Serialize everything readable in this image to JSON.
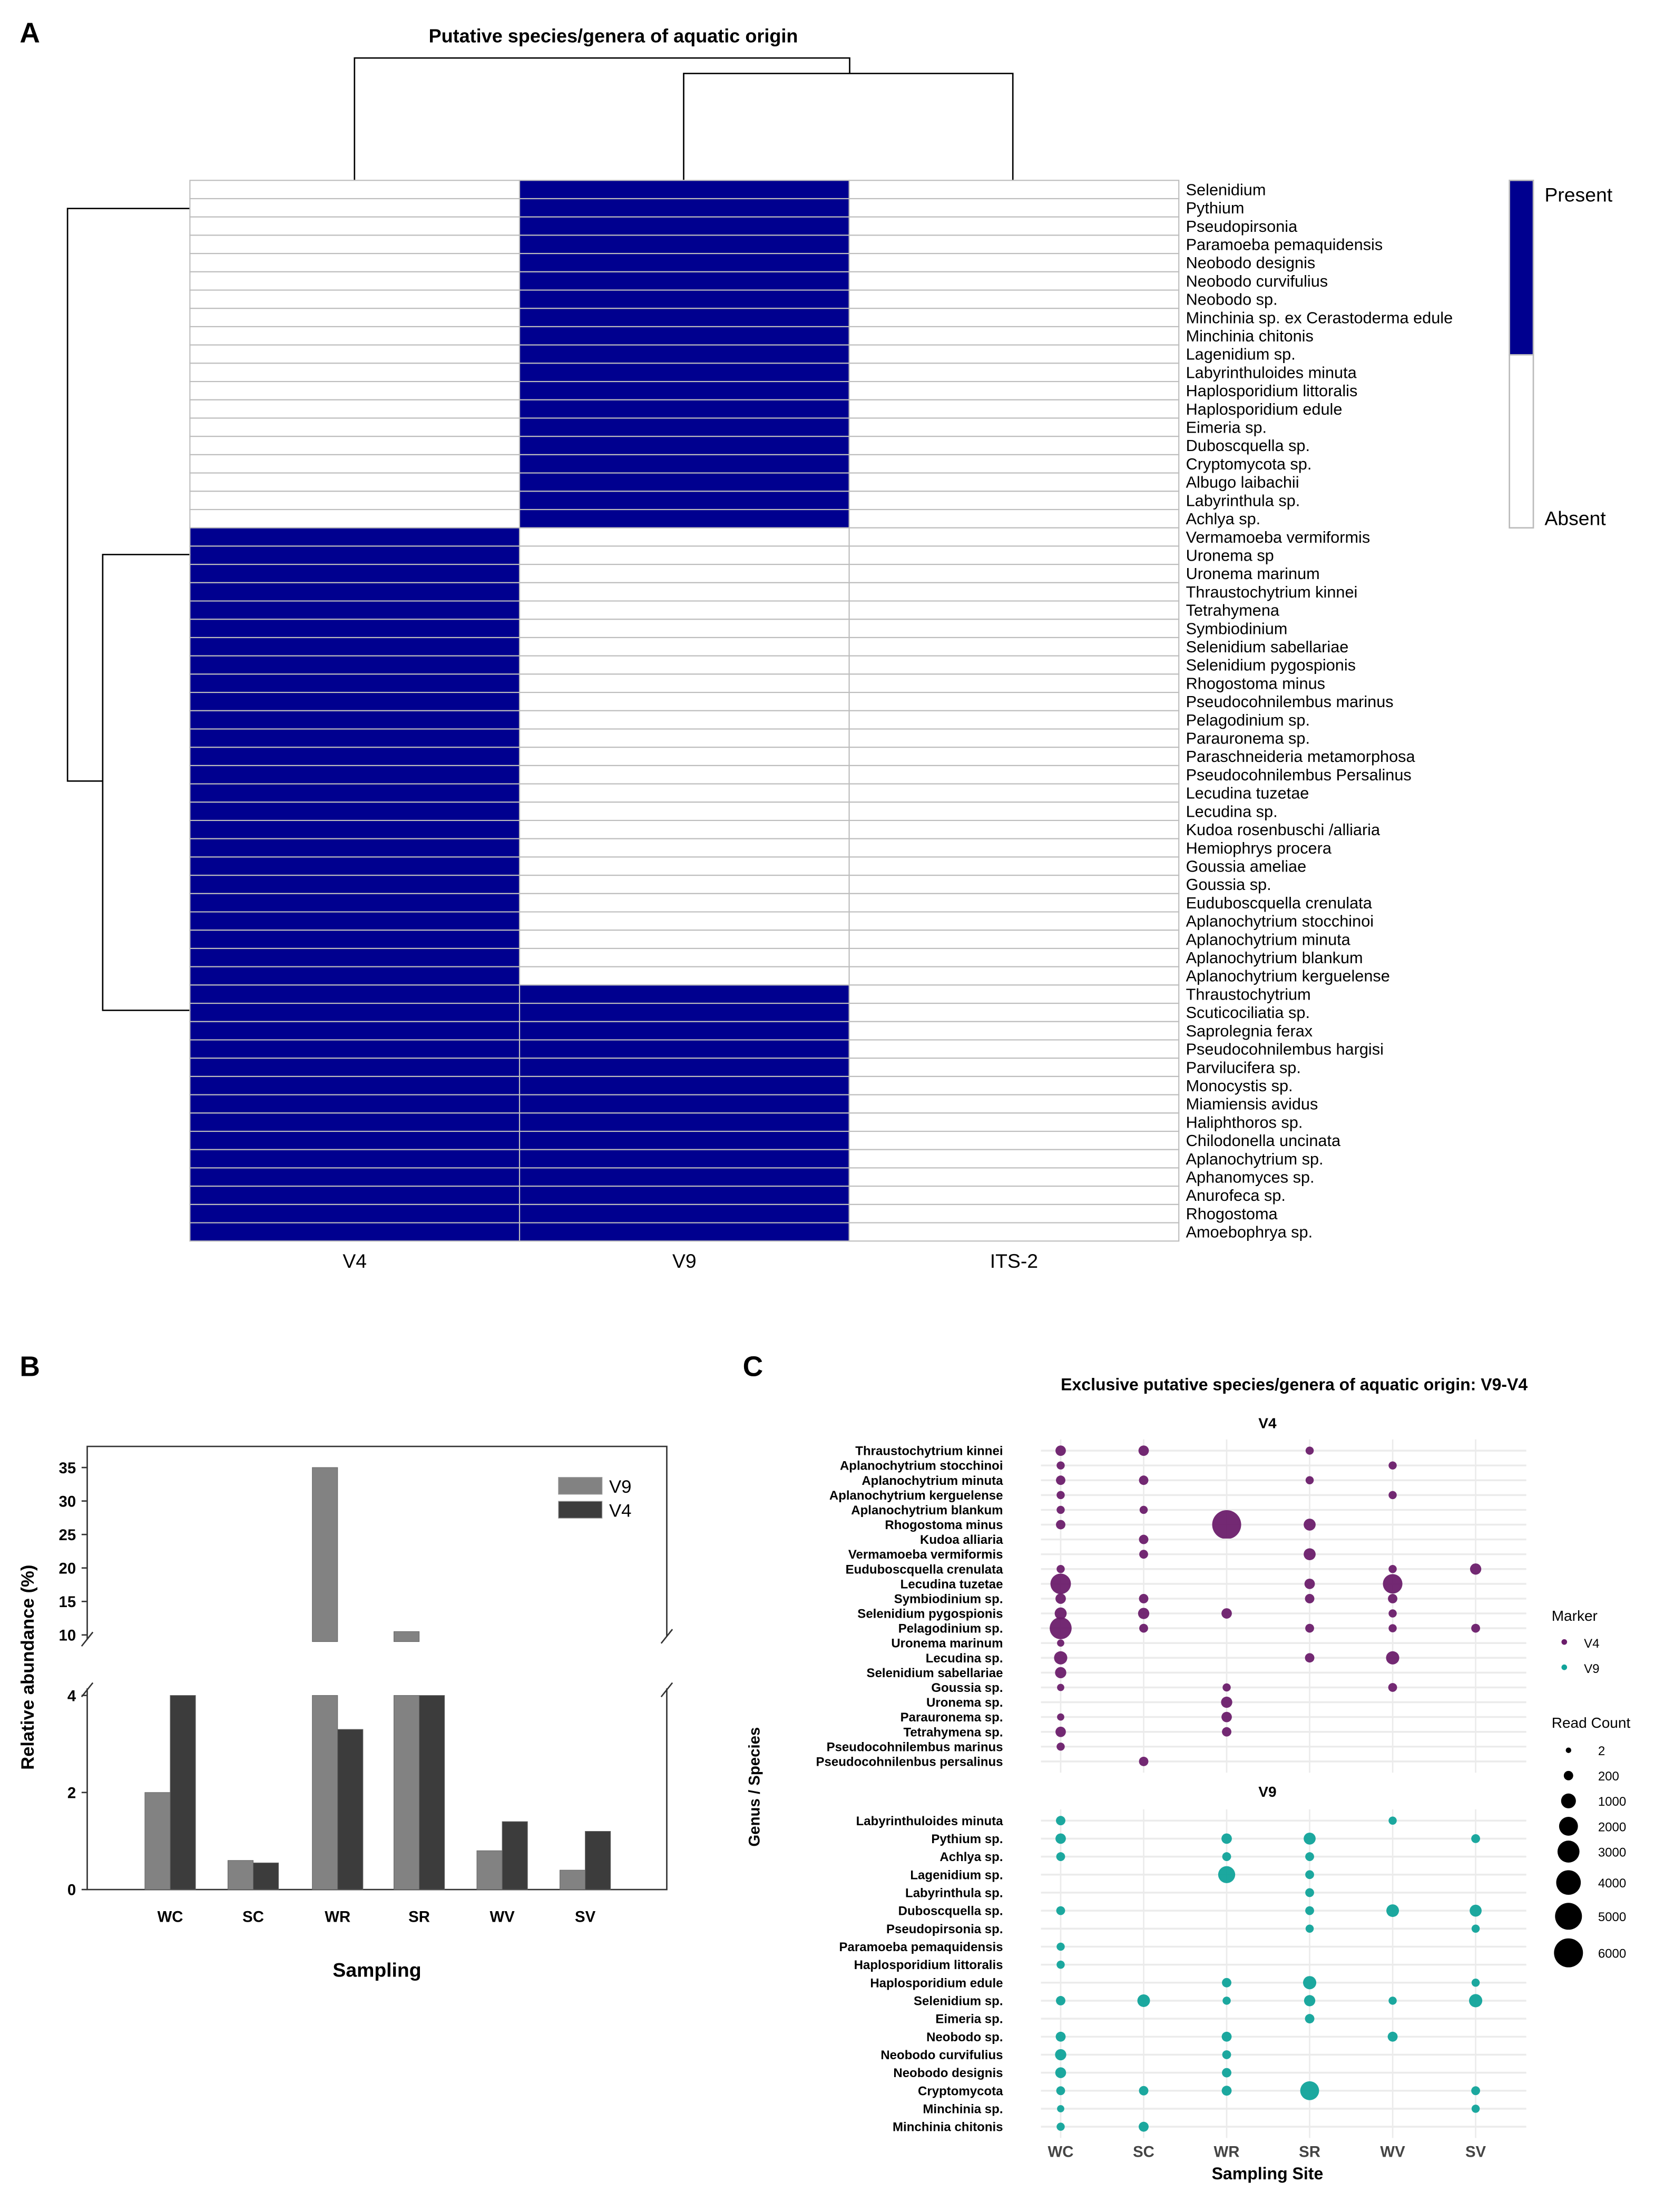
{
  "panel_labels": {
    "a": "A",
    "b": "B",
    "c": "C"
  },
  "chart_data": [
    {
      "type": "heatmap",
      "title": "Putative species/genera of aquatic origin",
      "columns": [
        "V4",
        "V9",
        "ITS-2"
      ],
      "legend": {
        "present": "Present",
        "absent": "Absent"
      },
      "colors": {
        "present": "#00008f",
        "absent": "#ffffff"
      },
      "rows": [
        {
          "name": "Selenidium",
          "values": [
            0,
            1,
            0
          ]
        },
        {
          "name": "Pythium",
          "values": [
            0,
            1,
            0
          ]
        },
        {
          "name": "Pseudopirsonia",
          "values": [
            0,
            1,
            0
          ]
        },
        {
          "name": "Paramoeba pemaquidensis",
          "values": [
            0,
            1,
            0
          ]
        },
        {
          "name": "Neobodo designis",
          "values": [
            0,
            1,
            0
          ]
        },
        {
          "name": "Neobodo curvifulius",
          "values": [
            0,
            1,
            0
          ]
        },
        {
          "name": "Neobodo sp.",
          "values": [
            0,
            1,
            0
          ]
        },
        {
          "name": "Minchinia sp. ex Cerastoderma edule",
          "values": [
            0,
            1,
            0
          ]
        },
        {
          "name": "Minchinia chitonis",
          "values": [
            0,
            1,
            0
          ]
        },
        {
          "name": "Lagenidium sp.",
          "values": [
            0,
            1,
            0
          ]
        },
        {
          "name": "Labyrinthuloides minuta",
          "values": [
            0,
            1,
            0
          ]
        },
        {
          "name": "Haplosporidium littoralis",
          "values": [
            0,
            1,
            0
          ]
        },
        {
          "name": "Haplosporidium edule",
          "values": [
            0,
            1,
            0
          ]
        },
        {
          "name": "Eimeria sp.",
          "values": [
            0,
            1,
            0
          ]
        },
        {
          "name": "Duboscquella sp.",
          "values": [
            0,
            1,
            0
          ]
        },
        {
          "name": "Cryptomycota sp.",
          "values": [
            0,
            1,
            0
          ]
        },
        {
          "name": "Albugo laibachii",
          "values": [
            0,
            1,
            0
          ]
        },
        {
          "name": "Labyrinthula sp.",
          "values": [
            0,
            1,
            0
          ]
        },
        {
          "name": "Achlya sp.",
          "values": [
            0,
            1,
            0
          ]
        },
        {
          "name": "Vermamoeba vermiformis",
          "values": [
            1,
            0,
            0
          ]
        },
        {
          "name": "Uronema sp",
          "values": [
            1,
            0,
            0
          ]
        },
        {
          "name": "Uronema marinum",
          "values": [
            1,
            0,
            0
          ]
        },
        {
          "name": "Thraustochytrium kinnei",
          "values": [
            1,
            0,
            0
          ]
        },
        {
          "name": "Tetrahymena",
          "values": [
            1,
            0,
            0
          ]
        },
        {
          "name": "Symbiodinium",
          "values": [
            1,
            0,
            0
          ]
        },
        {
          "name": "Selenidium sabellariae",
          "values": [
            1,
            0,
            0
          ]
        },
        {
          "name": "Selenidium pygospionis",
          "values": [
            1,
            0,
            0
          ]
        },
        {
          "name": "Rhogostoma minus",
          "values": [
            1,
            0,
            0
          ]
        },
        {
          "name": "Pseudocohnilembus marinus",
          "values": [
            1,
            0,
            0
          ]
        },
        {
          "name": "Pelagodinium sp.",
          "values": [
            1,
            0,
            0
          ]
        },
        {
          "name": "Parauronema sp.",
          "values": [
            1,
            0,
            0
          ]
        },
        {
          "name": "Paraschneideria metamorphosa",
          "values": [
            1,
            0,
            0
          ]
        },
        {
          "name": "Pseudocohnilembus Persalinus",
          "values": [
            1,
            0,
            0
          ]
        },
        {
          "name": "Lecudina tuzetae",
          "values": [
            1,
            0,
            0
          ]
        },
        {
          "name": "Lecudina sp.",
          "values": [
            1,
            0,
            0
          ]
        },
        {
          "name": "Kudoa rosenbuschi /alliaria",
          "values": [
            1,
            0,
            0
          ]
        },
        {
          "name": "Hemiophrys procera",
          "values": [
            1,
            0,
            0
          ]
        },
        {
          "name": "Goussia ameliae",
          "values": [
            1,
            0,
            0
          ]
        },
        {
          "name": "Goussia sp.",
          "values": [
            1,
            0,
            0
          ]
        },
        {
          "name": "Euduboscquella crenulata",
          "values": [
            1,
            0,
            0
          ]
        },
        {
          "name": "Aplanochytrium stocchinoi",
          "values": [
            1,
            0,
            0
          ]
        },
        {
          "name": "Aplanochytrium minuta",
          "values": [
            1,
            0,
            0
          ]
        },
        {
          "name": "Aplanochytrium blankum",
          "values": [
            1,
            0,
            0
          ]
        },
        {
          "name": "Aplanochytrium kerguelense",
          "values": [
            1,
            0,
            0
          ]
        },
        {
          "name": "Thraustochytrium",
          "values": [
            1,
            1,
            0
          ]
        },
        {
          "name": "Scuticociliatia sp.",
          "values": [
            1,
            1,
            0
          ]
        },
        {
          "name": "Saprolegnia ferax",
          "values": [
            1,
            1,
            0
          ]
        },
        {
          "name": "Pseudocohnilembus hargisi",
          "values": [
            1,
            1,
            0
          ]
        },
        {
          "name": "Parvilucifera sp.",
          "values": [
            1,
            1,
            0
          ]
        },
        {
          "name": "Monocystis sp.",
          "values": [
            1,
            1,
            0
          ]
        },
        {
          "name": "Miamiensis avidus",
          "values": [
            1,
            1,
            0
          ]
        },
        {
          "name": "Haliphthoros sp.",
          "values": [
            1,
            1,
            0
          ]
        },
        {
          "name": "Chilodonella uncinata",
          "values": [
            1,
            1,
            0
          ]
        },
        {
          "name": "Aplanochytrium sp.",
          "values": [
            1,
            1,
            0
          ]
        },
        {
          "name": "Aphanomyces sp.",
          "values": [
            1,
            1,
            0
          ]
        },
        {
          "name": "Anurofeca sp.",
          "values": [
            1,
            1,
            0
          ]
        },
        {
          "name": "Rhogostoma",
          "values": [
            1,
            1,
            0
          ]
        },
        {
          "name": "Amoebophrya sp.",
          "values": [
            1,
            1,
            0
          ]
        }
      ]
    },
    {
      "type": "bar",
      "title": "",
      "xlabel": "Sampling",
      "ylabel": "Relative abundance (%)",
      "categories": [
        "WC",
        "SC",
        "WR",
        "SR",
        "WV",
        "SV"
      ],
      "y_axis_break": {
        "lower_range": [
          0,
          4
        ],
        "upper_range": [
          9,
          38
        ]
      },
      "yticks_lower": [
        "0",
        "2",
        "4"
      ],
      "yticks_upper": [
        "10",
        "15",
        "20",
        "25",
        "30",
        "35"
      ],
      "legend_position": "top-right",
      "series": [
        {
          "name": "V9",
          "color": "#828282",
          "values": [
            2.0,
            0.6,
            35.0,
            10.5,
            0.8,
            0.4
          ]
        },
        {
          "name": "V4",
          "color": "#3c3c3c",
          "values": [
            4.0,
            0.55,
            3.3,
            4.0,
            1.4,
            1.2
          ]
        }
      ]
    },
    {
      "type": "scatter",
      "title": "Exclusive putative species/genera of aquatic origin: V9-V4",
      "xlabel": "Sampling Site",
      "ylabel": "Genus / Species",
      "sites": [
        "WC",
        "SC",
        "WR",
        "SR",
        "WV",
        "SV"
      ],
      "legend": {
        "marker_title": "Marker",
        "size_title": "Read Count",
        "size_values": [
          2,
          200,
          1000,
          2000,
          3000,
          4000,
          5000,
          6000
        ],
        "size_labels": [
          "2",
          "200",
          "1000",
          "2000",
          "3000",
          "4000",
          "5000",
          "6000"
        ]
      },
      "facets": [
        {
          "name": "V4",
          "color": "#6b1d6b",
          "rows": [
            {
              "name": "Thraustochytrium kinnei",
              "counts": [
                300,
                300,
                0,
                100,
                0,
                0
              ]
            },
            {
              "name": "Aplanochytrium stocchinoi",
              "counts": [
                100,
                0,
                0,
                0,
                100,
                0
              ]
            },
            {
              "name": "Aplanochytrium minuta",
              "counts": [
                200,
                200,
                0,
                100,
                0,
                0
              ]
            },
            {
              "name": "Aplanochytrium kerguelense",
              "counts": [
                100,
                0,
                0,
                0,
                100,
                0
              ]
            },
            {
              "name": "Aplanochytrium blankum",
              "counts": [
                100,
                100,
                0,
                0,
                0,
                0
              ]
            },
            {
              "name": "Rhogostoma minus",
              "counts": [
                200,
                0,
                6000,
                500,
                0,
                0
              ]
            },
            {
              "name": "Kudoa alliaria",
              "counts": [
                0,
                200,
                0,
                0,
                0,
                0
              ]
            },
            {
              "name": "Vermamoeba vermiformis",
              "counts": [
                0,
                150,
                0,
                500,
                0,
                0
              ]
            },
            {
              "name": "Euduboscquella crenulata",
              "counts": [
                100,
                0,
                0,
                0,
                100,
                400
              ]
            },
            {
              "name": "Lecudina tuzetae",
              "counts": [
                2500,
                0,
                0,
                300,
                2200,
                0
              ]
            },
            {
              "name": "Symbiodinium sp.",
              "counts": [
                300,
                200,
                0,
                200,
                200,
                0
              ]
            },
            {
              "name": "Selenidium pygospionis",
              "counts": [
                500,
                400,
                300,
                0,
                100,
                0
              ]
            },
            {
              "name": "Pelagodinium sp.",
              "counts": [
                3000,
                150,
                0,
                150,
                100,
                150
              ]
            },
            {
              "name": "Uronema marinum",
              "counts": [
                50,
                0,
                0,
                0,
                0,
                0
              ]
            },
            {
              "name": "Lecudina sp.",
              "counts": [
                700,
                0,
                0,
                200,
                700,
                0
              ]
            },
            {
              "name": "Selenidium sabellariae",
              "counts": [
                400,
                0,
                0,
                0,
                0,
                0
              ]
            },
            {
              "name": "Goussia sp.",
              "counts": [
                50,
                0,
                100,
                0,
                150,
                0
              ]
            },
            {
              "name": "Uronema sp.",
              "counts": [
                0,
                0,
                400,
                0,
                0,
                0
              ]
            },
            {
              "name": "Parauronema sp.",
              "counts": [
                50,
                0,
                300,
                0,
                0,
                0
              ]
            },
            {
              "name": "Tetrahymena sp.",
              "counts": [
                300,
                0,
                200,
                0,
                0,
                0
              ]
            },
            {
              "name": "Pseudocohnilembus marinus",
              "counts": [
                100,
                0,
                0,
                0,
                0,
                0
              ]
            },
            {
              "name": "Pseudocohnilenbus persalinus",
              "counts": [
                0,
                200,
                0,
                0,
                0,
                0
              ]
            }
          ]
        },
        {
          "name": "V9",
          "color": "#10a39a",
          "rows": [
            {
              "name": "Labyrinthuloides minuta",
              "counts": [
                200,
                0,
                0,
                0,
                100,
                0
              ]
            },
            {
              "name": "Pythium sp.",
              "counts": [
                300,
                0,
                300,
                500,
                0,
                150
              ]
            },
            {
              "name": "Achlya sp.",
              "counts": [
                150,
                0,
                150,
                150,
                0,
                0
              ]
            },
            {
              "name": "Lagenidium sp.",
              "counts": [
                0,
                0,
                1500,
                150,
                0,
                0
              ]
            },
            {
              "name": "Labyrinthula sp.",
              "counts": [
                0,
                0,
                0,
                150,
                0,
                0
              ]
            },
            {
              "name": "Duboscquella sp.",
              "counts": [
                150,
                0,
                0,
                150,
                600,
                500
              ]
            },
            {
              "name": "Pseudopirsonia sp.",
              "counts": [
                0,
                0,
                0,
                100,
                0,
                100
              ]
            },
            {
              "name": "Paramoeba pemaquidensis",
              "counts": [
                100,
                0,
                0,
                0,
                0,
                0
              ]
            },
            {
              "name": "Haplosporidium littoralis",
              "counts": [
                100,
                0,
                0,
                0,
                0,
                0
              ]
            },
            {
              "name": "Haplosporidium edule",
              "counts": [
                0,
                0,
                200,
                700,
                0,
                100
              ]
            },
            {
              "name": "Selenidium sp.",
              "counts": [
                200,
                600,
                100,
                400,
                100,
                700
              ]
            },
            {
              "name": "Eimeria sp.",
              "counts": [
                0,
                0,
                0,
                200,
                0,
                0
              ]
            },
            {
              "name": "Neobodo sp.",
              "counts": [
                250,
                0,
                250,
                0,
                250,
                0
              ]
            },
            {
              "name": "Neobodo curvifulius",
              "counts": [
                400,
                0,
                150,
                0,
                0,
                0
              ]
            },
            {
              "name": "Neobodo designis",
              "counts": [
                350,
                0,
                200,
                0,
                0,
                0
              ]
            },
            {
              "name": "Cryptomycota",
              "counts": [
                150,
                200,
                250,
                2000,
                0,
                150
              ]
            },
            {
              "name": "Minchinia sp.",
              "counts": [
                50,
                0,
                0,
                0,
                0,
                100
              ]
            },
            {
              "name": "Minchinia chitonis",
              "counts": [
                100,
                250,
                0,
                0,
                0,
                0
              ]
            }
          ]
        }
      ]
    }
  ]
}
